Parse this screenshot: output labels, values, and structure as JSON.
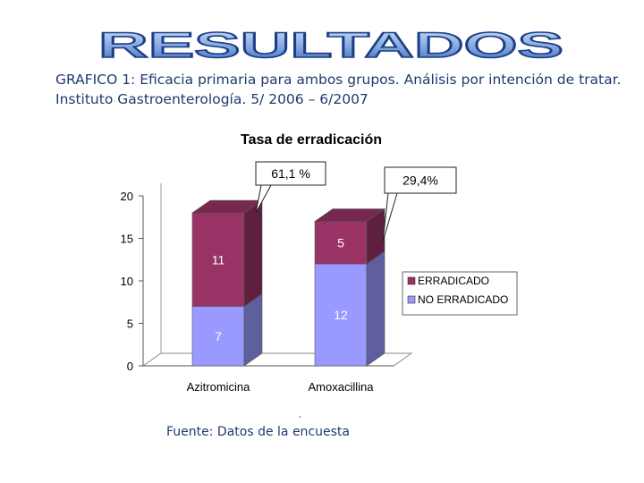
{
  "header": {
    "banner_text": "RESULTADOS",
    "subtitle": "GRAFICO 1: Eficacia primaria  para ambos grupos. Análisis por intención de tratar. Instituto Gastroenterología. 5/ 2006 – 6/2007"
  },
  "chart_data": {
    "type": "bar",
    "stacked": true,
    "title": "Tasa de erradicación",
    "categories": [
      "Azitromicina",
      "Amoxacillina"
    ],
    "series": [
      {
        "name": "NO ERRADICADO",
        "values": [
          7,
          12
        ],
        "color": "#9999ff"
      },
      {
        "name": "ERRADICADO",
        "values": [
          11,
          5
        ],
        "color": "#993366"
      }
    ],
    "ylim": [
      0,
      20
    ],
    "yticks": [
      0,
      5,
      10,
      15,
      20
    ],
    "annotations": [
      "61,1 %",
      "29,4%"
    ],
    "legend_position": "right",
    "three_d": true
  },
  "footer": {
    "source": "Fuente: Datos de la encuesta",
    "mark": ","
  }
}
